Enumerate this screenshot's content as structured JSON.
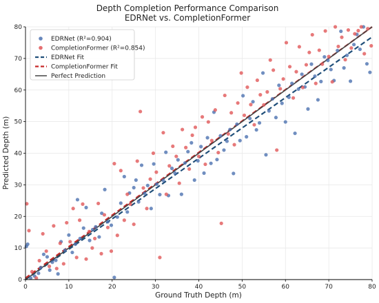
{
  "chart_data": {
    "type": "scatter",
    "title": "Depth Completion Performance Comparison",
    "subtitle": "EDRNet vs. CompletionFormer",
    "xlabel": "Ground Truth Depth (m)",
    "ylabel": "Predicted Depth (m)",
    "xlim": [
      0,
      80
    ],
    "ylim": [
      0,
      80
    ],
    "xticks": [
      0,
      10,
      20,
      30,
      40,
      50,
      60,
      70,
      80
    ],
    "yticks": [
      0,
      10,
      20,
      30,
      40,
      50,
      60,
      70,
      80
    ],
    "grid": true,
    "legend_position": "top-left",
    "series": [
      {
        "name": "EDRNet (R²=0.904)",
        "kind": "scatter",
        "color": "#4c72b0",
        "points": [
          [
            0.2,
            10.5
          ],
          [
            0.5,
            11.2
          ],
          [
            1.2,
            0.5
          ],
          [
            2.1,
            1.1
          ],
          [
            3.0,
            2.0
          ],
          [
            3.5,
            3.8
          ],
          [
            4.2,
            8.0
          ],
          [
            5.0,
            7.2
          ],
          [
            5.6,
            3.0
          ],
          [
            6.2,
            5.5
          ],
          [
            7.0,
            6.1
          ],
          [
            7.5,
            1.8
          ],
          [
            8.2,
            12.0
          ],
          [
            9.1,
            9.3
          ],
          [
            10.0,
            14.1
          ],
          [
            10.8,
            8.6
          ],
          [
            11.5,
            11.2
          ],
          [
            12.0,
            25.3
          ],
          [
            12.6,
            13.0
          ],
          [
            13.4,
            16.3
          ],
          [
            14.0,
            22.8
          ],
          [
            14.8,
            12.4
          ],
          [
            15.5,
            15.8
          ],
          [
            16.2,
            16.7
          ],
          [
            17.0,
            13.5
          ],
          [
            17.6,
            21.0
          ],
          [
            18.3,
            28.5
          ],
          [
            19.0,
            18.3
          ],
          [
            19.8,
            17.2
          ],
          [
            20.5,
            0.7
          ],
          [
            21.2,
            19.8
          ],
          [
            22.0,
            24.2
          ],
          [
            22.8,
            32.6
          ],
          [
            23.5,
            21.4
          ],
          [
            24.0,
            27.4
          ],
          [
            25.0,
            29.1
          ],
          [
            25.5,
            31.5
          ],
          [
            26.1,
            24.6
          ],
          [
            26.8,
            36.2
          ],
          [
            27.5,
            27.3
          ],
          [
            28.2,
            29.8
          ],
          [
            29.0,
            22.5
          ],
          [
            29.6,
            36.6
          ],
          [
            30.3,
            30.2
          ],
          [
            31.0,
            26.9
          ],
          [
            31.8,
            31.4
          ],
          [
            32.4,
            40.3
          ],
          [
            33.0,
            26.6
          ],
          [
            33.8,
            35.2
          ],
          [
            34.5,
            33.7
          ],
          [
            35.2,
            37.9
          ],
          [
            36.0,
            27.0
          ],
          [
            36.8,
            36.9
          ],
          [
            37.5,
            40.5
          ],
          [
            38.3,
            43.3
          ],
          [
            39.0,
            31.5
          ],
          [
            39.8,
            37.6
          ],
          [
            40.5,
            42.1
          ],
          [
            41.2,
            33.7
          ],
          [
            42.0,
            44.9
          ],
          [
            42.8,
            36.8
          ],
          [
            43.5,
            53.0
          ],
          [
            44.2,
            38.0
          ],
          [
            45.0,
            45.5
          ],
          [
            45.8,
            41.0
          ],
          [
            46.5,
            43.8
          ],
          [
            47.2,
            47.5
          ],
          [
            48.0,
            33.6
          ],
          [
            48.8,
            49.2
          ],
          [
            49.5,
            44.0
          ],
          [
            50.2,
            58.2
          ],
          [
            51.0,
            45.2
          ],
          [
            51.8,
            51.0
          ],
          [
            52.5,
            56.3
          ],
          [
            53.3,
            47.4
          ],
          [
            54.0,
            49.6
          ],
          [
            54.8,
            65.4
          ],
          [
            55.5,
            39.5
          ],
          [
            56.2,
            53.4
          ],
          [
            57.0,
            57.2
          ],
          [
            57.8,
            51.3
          ],
          [
            58.5,
            61.5
          ],
          [
            59.2,
            55.8
          ],
          [
            60.0,
            49.9
          ],
          [
            60.8,
            57.7
          ],
          [
            61.5,
            62.1
          ],
          [
            62.2,
            46.3
          ],
          [
            63.0,
            60.3
          ],
          [
            63.8,
            65.0
          ],
          [
            64.5,
            61.0
          ],
          [
            65.2,
            54.0
          ],
          [
            66.0,
            68.2
          ],
          [
            66.8,
            64.4
          ],
          [
            67.5,
            56.9
          ],
          [
            68.2,
            62.7
          ],
          [
            69.0,
            70.5
          ],
          [
            69.8,
            69.4
          ],
          [
            70.5,
            66.5
          ],
          [
            71.2,
            63.0
          ],
          [
            72.0,
            72.5
          ],
          [
            72.8,
            78.6
          ],
          [
            73.5,
            67.0
          ],
          [
            74.2,
            71.0
          ],
          [
            75.0,
            62.8
          ],
          [
            75.8,
            74.4
          ],
          [
            76.5,
            77.6
          ],
          [
            77.2,
            72.9
          ],
          [
            78.0,
            80.0
          ],
          [
            78.8,
            68.3
          ],
          [
            79.5,
            65.6
          ]
        ]
      },
      {
        "name": "CompletionFormer (R²=0.854)",
        "kind": "scatter",
        "color": "#e15759",
        "points": [
          [
            0.3,
            24.0
          ],
          [
            0.8,
            15.5
          ],
          [
            1.5,
            2.5
          ],
          [
            2.5,
            0.5
          ],
          [
            3.2,
            6.0
          ],
          [
            4.0,
            14.5
          ],
          [
            4.8,
            9.0
          ],
          [
            5.5,
            4.2
          ],
          [
            6.5,
            17.0
          ],
          [
            7.2,
            3.5
          ],
          [
            8.0,
            11.5
          ],
          [
            8.8,
            5.0
          ],
          [
            9.5,
            18.0
          ],
          [
            10.3,
            12.0
          ],
          [
            11.0,
            22.5
          ],
          [
            11.8,
            7.0
          ],
          [
            12.5,
            18.8
          ],
          [
            13.2,
            23.9
          ],
          [
            14.0,
            6.5
          ],
          [
            14.7,
            15.2
          ],
          [
            15.4,
            10.0
          ],
          [
            16.0,
            13.0
          ],
          [
            16.8,
            24.1
          ],
          [
            17.5,
            8.2
          ],
          [
            18.2,
            20.5
          ],
          [
            19.0,
            16.5
          ],
          [
            19.8,
            9.0
          ],
          [
            20.5,
            36.7
          ],
          [
            21.2,
            14.0
          ],
          [
            22.0,
            34.5
          ],
          [
            22.8,
            18.8
          ],
          [
            23.5,
            27.0
          ],
          [
            24.2,
            23.9
          ],
          [
            25.0,
            17.5
          ],
          [
            25.8,
            37.5
          ],
          [
            26.5,
            53.2
          ],
          [
            27.2,
            29.0
          ],
          [
            28.0,
            22.5
          ],
          [
            28.8,
            31.8
          ],
          [
            29.5,
            40.0
          ],
          [
            30.2,
            34.0
          ],
          [
            31.0,
            7.0
          ],
          [
            31.8,
            46.5
          ],
          [
            32.5,
            27.0
          ],
          [
            33.2,
            36.0
          ],
          [
            34.0,
            42.2
          ],
          [
            34.8,
            39.0
          ],
          [
            35.5,
            30.5
          ],
          [
            36.2,
            47.5
          ],
          [
            37.0,
            41.8
          ],
          [
            37.8,
            35.0
          ],
          [
            38.5,
            45.7
          ],
          [
            39.2,
            48.2
          ],
          [
            40.0,
            39.0
          ],
          [
            40.8,
            51.5
          ],
          [
            41.5,
            36.5
          ],
          [
            42.2,
            49.9
          ],
          [
            43.0,
            44.0
          ],
          [
            43.8,
            53.7
          ],
          [
            44.5,
            40.2
          ],
          [
            45.2,
            17.8
          ],
          [
            46.0,
            58.3
          ],
          [
            46.8,
            46.1
          ],
          [
            47.5,
            52.8
          ],
          [
            48.2,
            42.7
          ],
          [
            49.0,
            55.9
          ],
          [
            49.8,
            65.4
          ],
          [
            50.5,
            52.0
          ],
          [
            51.2,
            60.9
          ],
          [
            52.0,
            55.4
          ],
          [
            52.8,
            49.0
          ],
          [
            53.5,
            63.1
          ],
          [
            54.2,
            58.5
          ],
          [
            55.0,
            55.3
          ],
          [
            55.8,
            59.4
          ],
          [
            56.5,
            69.5
          ],
          [
            57.2,
            66.3
          ],
          [
            58.0,
            41.0
          ],
          [
            58.8,
            60.4
          ],
          [
            59.5,
            63.5
          ],
          [
            60.2,
            75.0
          ],
          [
            61.0,
            67.4
          ],
          [
            61.8,
            57.5
          ],
          [
            62.5,
            65.8
          ],
          [
            63.2,
            73.7
          ],
          [
            64.0,
            60.8
          ],
          [
            64.8,
            68.0
          ],
          [
            65.5,
            71.9
          ],
          [
            66.2,
            77.5
          ],
          [
            67.0,
            62.1
          ],
          [
            67.8,
            72.6
          ],
          [
            68.5,
            68.2
          ],
          [
            69.2,
            78.7
          ],
          [
            70.0,
            70.6
          ],
          [
            70.8,
            62.6
          ],
          [
            71.5,
            80.0
          ],
          [
            72.2,
            73.8
          ],
          [
            73.0,
            76.7
          ],
          [
            73.8,
            69.6
          ],
          [
            74.5,
            79.0
          ],
          [
            75.2,
            73.3
          ],
          [
            76.0,
            77.8
          ],
          [
            76.8,
            78.8
          ],
          [
            77.5,
            80.0
          ],
          [
            78.2,
            71.5
          ],
          [
            79.0,
            79.4
          ],
          [
            79.8,
            74.0
          ]
        ]
      },
      {
        "name": "EDRNet Fit",
        "kind": "line",
        "color": "#1f4e79",
        "dash": "dashed",
        "x": [
          0,
          80
        ],
        "y": [
          0,
          76.8
        ]
      },
      {
        "name": "CompletionFormer Fit",
        "kind": "line",
        "color": "#c62828",
        "dash": "dashed",
        "x": [
          0,
          80
        ],
        "y": [
          0.5,
          80.0
        ]
      },
      {
        "name": "Perfect Prediction",
        "kind": "line",
        "color": "#444444",
        "dash": "solid",
        "x": [
          0,
          80
        ],
        "y": [
          0,
          80
        ]
      }
    ]
  }
}
